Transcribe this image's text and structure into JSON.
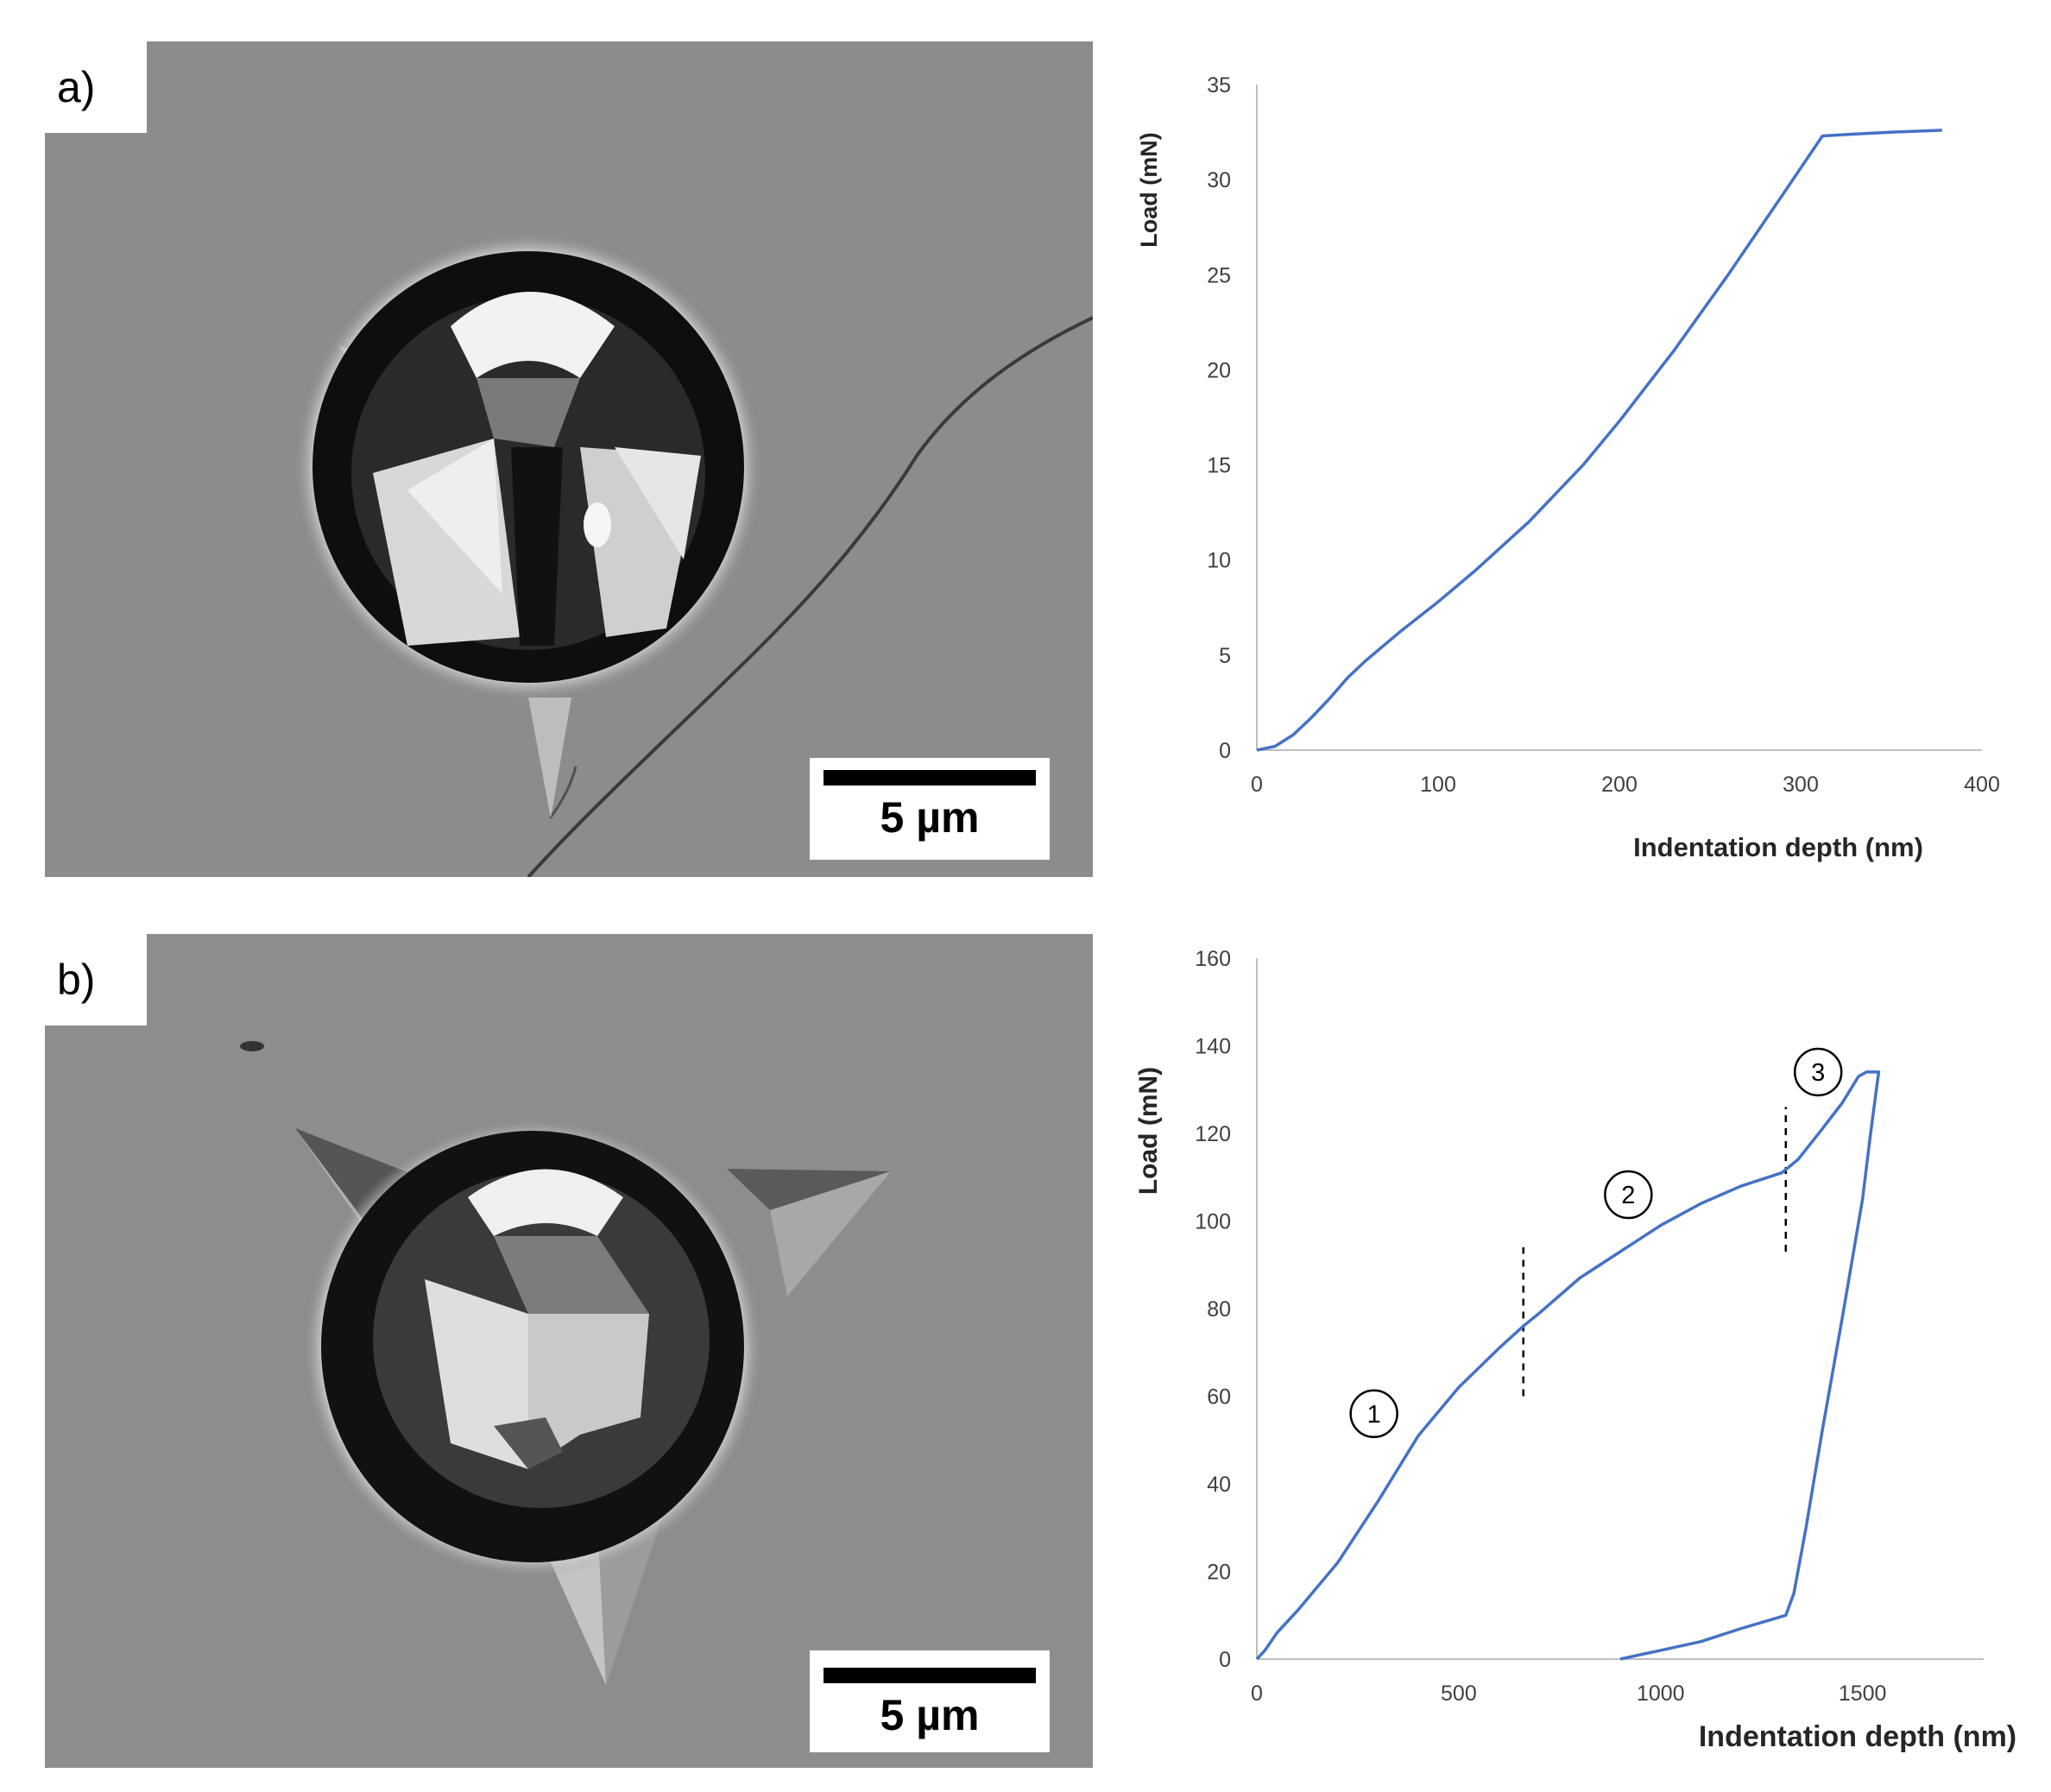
{
  "panels": [
    {
      "label": "a)",
      "scale_bar_text": "5 µm"
    },
    {
      "label": "b)",
      "scale_bar_text": "5 µm"
    }
  ],
  "chart_data": [
    {
      "type": "line",
      "xlabel": "Indentation depth (nm)",
      "ylabel": "Load (mN)",
      "xlim": [
        0,
        400
      ],
      "ylim": [
        0,
        35
      ],
      "xticks": [
        0,
        100,
        200,
        300,
        400
      ],
      "yticks": [
        0,
        5,
        10,
        15,
        20,
        25,
        30,
        35
      ],
      "grid": false,
      "color": "#4472c4",
      "series": [
        {
          "x": [
            0,
            5,
            10,
            20,
            30,
            40,
            50,
            60,
            80,
            100,
            120,
            150,
            180,
            200,
            230,
            260,
            290,
            312,
            330,
            350,
            378
          ],
          "y": [
            0,
            0.1,
            0.2,
            0.8,
            1.7,
            2.7,
            3.8,
            4.7,
            6.3,
            7.8,
            9.4,
            12.0,
            15.0,
            17.3,
            21.0,
            25.0,
            29.2,
            32.3,
            32.4,
            32.5,
            32.6
          ]
        }
      ]
    },
    {
      "type": "line",
      "xlabel": "Indentation depth (nm)",
      "ylabel": "Load (mN)",
      "xlim": [
        0,
        1800
      ],
      "ylim": [
        0,
        160
      ],
      "xticks": [
        0,
        500,
        1000,
        1500
      ],
      "yticks": [
        0,
        20,
        40,
        60,
        80,
        100,
        120,
        140,
        160
      ],
      "grid": false,
      "color": "#4472c4",
      "annotations": [
        {
          "text": "1",
          "x": 290,
          "y": 56
        },
        {
          "text": "2",
          "x": 920,
          "y": 106
        },
        {
          "text": "3",
          "x": 1390,
          "y": 134
        }
      ],
      "dividers": [
        {
          "x": 660,
          "y_from": 60,
          "y_to": 94
        },
        {
          "x": 1310,
          "y_from": 93,
          "y_to": 126
        }
      ],
      "series": [
        {
          "x": [
            0,
            20,
            50,
            100,
            200,
            300,
            400,
            500,
            600,
            660,
            700,
            800,
            900,
            1000,
            1100,
            1200,
            1300,
            1340,
            1400,
            1450,
            1490,
            1510,
            1530,
            1540,
            1520,
            1500,
            1450,
            1400,
            1360,
            1330,
            1310,
            1200,
            1100,
            1000,
            950,
            900
          ],
          "y": [
            0,
            2,
            6,
            11,
            22,
            36,
            51,
            62,
            71,
            76,
            79,
            87,
            93,
            99,
            104,
            108,
            111,
            114,
            121,
            127,
            133,
            134,
            134,
            134,
            120,
            105,
            78,
            52,
            30,
            15,
            10,
            7,
            4,
            2,
            1,
            0
          ]
        }
      ]
    }
  ]
}
